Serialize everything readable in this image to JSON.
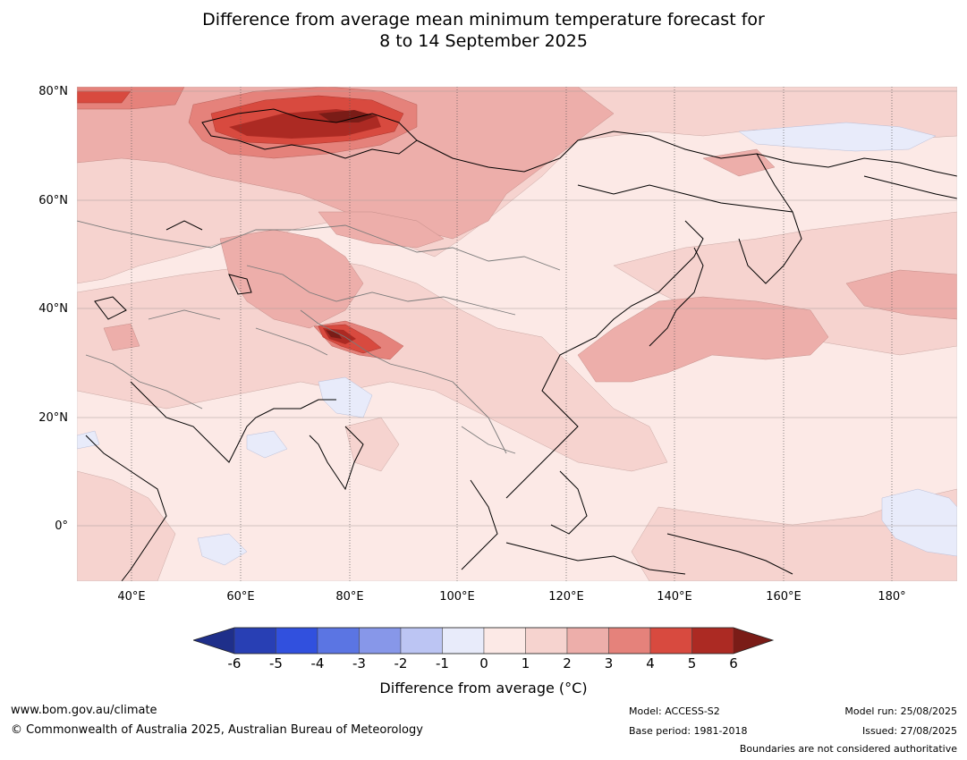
{
  "title_line1": "Difference from average mean minimum temperature forecast for",
  "title_line2": "8 to 14 September 2025",
  "lat_labels": [
    "80°N",
    "60°N",
    "40°N",
    "20°N",
    "0°"
  ],
  "lon_labels": [
    "40°E",
    "60°E",
    "80°E",
    "100°E",
    "120°E",
    "140°E",
    "160°E",
    "180°"
  ],
  "colorbar": {
    "ticks": [
      "-6",
      "-5",
      "-4",
      "-3",
      "-2",
      "-1",
      "0",
      "1",
      "2",
      "3",
      "4",
      "5",
      "6"
    ],
    "colors": [
      "#1f2f8a",
      "#283fb4",
      "#3150de",
      "#5b75e3",
      "#8797e9",
      "#bcc5f3",
      "#e8ebfa",
      "#fce9e6",
      "#f6d3cf",
      "#edaeaa",
      "#e5827b",
      "#d84a3f",
      "#ac2a23",
      "#7a1c17"
    ],
    "label": "Difference from average (°C)"
  },
  "footer": {
    "url": "www.bom.gov.au/climate",
    "copyright": "© Commonwealth of Australia 2025, Australian Bureau of Meteorology",
    "model": "Model: ACCESS-S2",
    "base_period": "Base period: 1981-2018",
    "model_run": "Model run: 25/08/2025",
    "issued": "Issued: 27/08/2025",
    "disclaimer": "Boundaries are not considered authoritative"
  }
}
